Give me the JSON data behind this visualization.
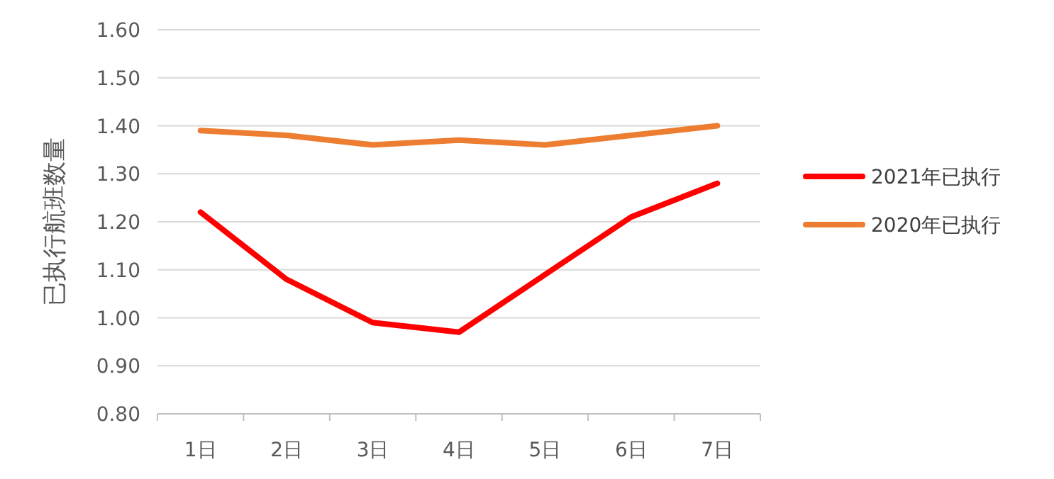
{
  "chart_data": {
    "type": "line",
    "ylabel": "已执行航班数量",
    "categories": [
      "1日",
      "2日",
      "3日",
      "4日",
      "5日",
      "6日",
      "7日"
    ],
    "series": [
      {
        "name": "2021年已执行",
        "color": "#ff0000",
        "values": [
          1.22,
          1.08,
          0.99,
          0.97,
          1.09,
          1.21,
          1.28
        ]
      },
      {
        "name": "2020年已执行",
        "color": "#ed7d31",
        "values": [
          1.39,
          1.38,
          1.36,
          1.37,
          1.36,
          1.38,
          1.4
        ]
      }
    ],
    "ylim": [
      0.8,
      1.6
    ],
    "yticks": [
      {
        "value": 0.8,
        "label": "0.80"
      },
      {
        "value": 0.9,
        "label": "0.90"
      },
      {
        "value": 1.0,
        "label": "1.00"
      },
      {
        "value": 1.1,
        "label": "1.10"
      },
      {
        "value": 1.2,
        "label": "1.20"
      },
      {
        "value": 1.3,
        "label": "1.30"
      },
      {
        "value": 1.4,
        "label": "1.40"
      },
      {
        "value": 1.5,
        "label": "1.50"
      },
      {
        "value": 1.6,
        "label": "1.60"
      }
    ],
    "grid": "y",
    "legend": "right"
  }
}
